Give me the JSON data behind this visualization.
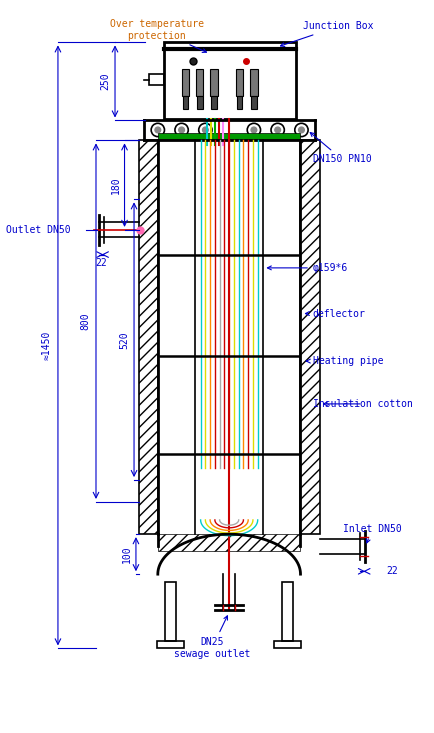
{
  "bg_color": "#ffffff",
  "line_color": "#000000",
  "blue_color": "#0000cc",
  "red_color": "#cc0000",
  "text_color_orange": "#cc6600",
  "cyan_color": "#00cccc",
  "yellow_color": "#dddd00",
  "green_color": "#00aa00",
  "figsize": [
    4.34,
    7.33
  ],
  "dpi": 100,
  "annotations": {
    "over_temp": "Over temperature\nprotection",
    "junction_box": "Junction Box",
    "dn150": "DN150 PN10",
    "phi159": "φ159*6",
    "deflector": "deflector",
    "heating_pipe": "Heating pipe",
    "insulation": "Insulation cotton",
    "outlet": "Outlet DN50",
    "inlet": "Inlet DN50",
    "dn25": "DN25\nsewage outlet",
    "dim_250": "250",
    "dim_180": "180",
    "dim_22_top": "22",
    "dim_800": "800",
    "dim_520": "520",
    "dim_1450": "≈1450",
    "dim_100": "100",
    "dim_22_bot": "22"
  }
}
